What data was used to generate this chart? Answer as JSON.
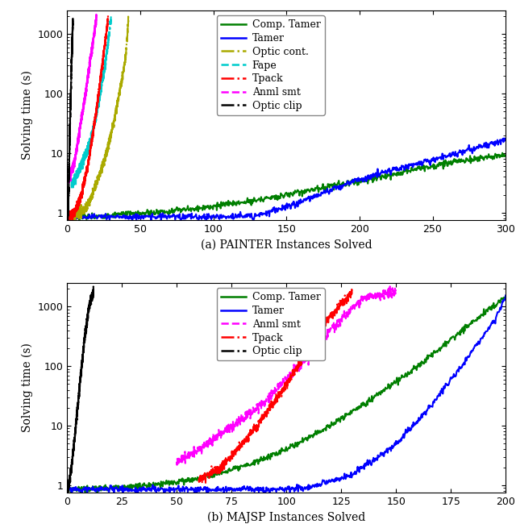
{
  "panel_a": {
    "xlabel": "(a) PAINTER Instances Solved",
    "ylabel": "Solving time (s)",
    "xlim": [
      0,
      300
    ],
    "ylim": [
      0.75,
      2500
    ],
    "xticks": [
      0,
      50,
      100,
      150,
      200,
      250,
      300
    ],
    "series": [
      {
        "label": "Comp. Tamer",
        "color": "#007f00",
        "ls": "solid",
        "lw": 1.5,
        "pts": [
          [
            1,
            0.85
          ],
          [
            30,
            0.9
          ],
          [
            60,
            1.0
          ],
          [
            90,
            1.2
          ],
          [
            120,
            1.5
          ],
          [
            150,
            2.0
          ],
          [
            180,
            2.8
          ],
          [
            210,
            3.8
          ],
          [
            240,
            5.5
          ],
          [
            270,
            7.5
          ],
          [
            300,
            9.5
          ]
        ]
      },
      {
        "label": "Tamer",
        "color": "#0000ff",
        "ls": "solid",
        "lw": 1.5,
        "pts": [
          [
            1,
            0.85
          ],
          [
            50,
            0.85
          ],
          [
            80,
            0.85
          ],
          [
            100,
            0.85
          ],
          [
            110,
            0.85
          ],
          [
            130,
            0.9
          ],
          [
            160,
            1.5
          ],
          [
            190,
            3.0
          ],
          [
            220,
            5.0
          ],
          [
            260,
            9.0
          ],
          [
            300,
            17.0
          ]
        ]
      },
      {
        "label": "Optic cont.",
        "color": "#aaaa00",
        "ls": "dashdot",
        "lw": 1.5,
        "pts": [
          [
            1,
            0.85
          ],
          [
            5,
            0.9
          ],
          [
            10,
            1.0
          ],
          [
            15,
            1.5
          ],
          [
            20,
            3.0
          ],
          [
            25,
            7.0
          ],
          [
            30,
            20.0
          ],
          [
            35,
            80.0
          ],
          [
            40,
            400.0
          ],
          [
            42,
            1800.0
          ]
        ]
      },
      {
        "label": "Fape",
        "color": "#00cccc",
        "ls": "dashed",
        "lw": 1.5,
        "pts": [
          [
            3,
            3.0
          ],
          [
            8,
            5.0
          ],
          [
            13,
            10.0
          ],
          [
            18,
            25.0
          ],
          [
            22,
            80.0
          ],
          [
            26,
            300.0
          ],
          [
            30,
            1800.0
          ]
        ]
      },
      {
        "label": "Tpack",
        "color": "#ff0000",
        "ls": "dashdot",
        "lw": 1.5,
        "pts": [
          [
            1,
            0.85
          ],
          [
            5,
            1.0
          ],
          [
            10,
            2.0
          ],
          [
            15,
            8.0
          ],
          [
            20,
            50.0
          ],
          [
            24,
            300.0
          ],
          [
            28,
            1800.0
          ]
        ]
      },
      {
        "label": "Anml smt",
        "color": "#ff00ff",
        "ls": "dashed",
        "lw": 1.5,
        "pts": [
          [
            1,
            3.5
          ],
          [
            5,
            7.0
          ],
          [
            8,
            20.0
          ],
          [
            12,
            80.0
          ],
          [
            16,
            400.0
          ],
          [
            20,
            1800.0
          ]
        ]
      },
      {
        "label": "Optic clip",
        "color": "#000000",
        "ls": "dashdot",
        "lw": 1.5,
        "pts": [
          [
            0.5,
            0.85
          ],
          [
            1,
            2.0
          ],
          [
            2,
            30.0
          ],
          [
            3,
            300.0
          ],
          [
            4,
            1800.0
          ]
        ]
      }
    ],
    "legend_texts": [
      "Comp. Tamer",
      "Tamer",
      "Optic cont.",
      "Fape",
      "Tpack",
      "Anml smt",
      "Optic clip"
    ]
  },
  "panel_b": {
    "xlabel": "(b) MAJSP Instances Solved",
    "ylabel": "Solving time (s)",
    "xlim": [
      0,
      200
    ],
    "ylim": [
      0.75,
      2500
    ],
    "xticks": [
      0,
      25,
      50,
      75,
      100,
      125,
      150,
      175,
      200
    ],
    "series": [
      {
        "label": "Comp. Tamer",
        "color": "#007f00",
        "ls": "solid",
        "lw": 1.5,
        "pts": [
          [
            1,
            0.85
          ],
          [
            20,
            0.9
          ],
          [
            40,
            1.0
          ],
          [
            60,
            1.3
          ],
          [
            80,
            2.0
          ],
          [
            100,
            4.0
          ],
          [
            120,
            10.0
          ],
          [
            140,
            30.0
          ],
          [
            160,
            100.0
          ],
          [
            180,
            400.0
          ],
          [
            200,
            1500.0
          ]
        ]
      },
      {
        "label": "Tamer",
        "color": "#0000ff",
        "ls": "solid",
        "lw": 1.5,
        "pts": [
          [
            1,
            0.85
          ],
          [
            40,
            0.85
          ],
          [
            70,
            0.85
          ],
          [
            90,
            0.85
          ],
          [
            100,
            0.85
          ],
          [
            110,
            0.9
          ],
          [
            130,
            1.5
          ],
          [
            150,
            5.0
          ],
          [
            165,
            20.0
          ],
          [
            180,
            100.0
          ],
          [
            195,
            600.0
          ],
          [
            200,
            1500.0
          ]
        ]
      },
      {
        "label": "Anml smt",
        "color": "#ff00ff",
        "ls": "dashed",
        "lw": 1.5,
        "pts": [
          [
            50,
            2.5
          ],
          [
            60,
            4.0
          ],
          [
            70,
            7.0
          ],
          [
            80,
            13.0
          ],
          [
            90,
            25.0
          ],
          [
            100,
            60.0
          ],
          [
            110,
            150.0
          ],
          [
            120,
            400.0
          ],
          [
            135,
            1400.0
          ],
          [
            150,
            1800.0
          ]
        ]
      },
      {
        "label": "Tpack",
        "color": "#ff0000",
        "ls": "dashdot",
        "lw": 1.5,
        "pts": [
          [
            60,
            1.2
          ],
          [
            70,
            2.0
          ],
          [
            80,
            5.0
          ],
          [
            90,
            15.0
          ],
          [
            100,
            50.0
          ],
          [
            110,
            200.0
          ],
          [
            120,
            700.0
          ],
          [
            130,
            1800.0
          ]
        ]
      },
      {
        "label": "Optic clip",
        "color": "#000000",
        "ls": "dashdot",
        "lw": 1.5,
        "pts": [
          [
            0.5,
            0.85
          ],
          [
            2,
            2.0
          ],
          [
            4,
            10.0
          ],
          [
            6,
            60.0
          ],
          [
            8,
            300.0
          ],
          [
            10,
            1000.0
          ],
          [
            12,
            1800.0
          ]
        ]
      }
    ],
    "legend_texts": [
      "Comp. Tamer",
      "Tamer",
      "Anml smt",
      "Tpack",
      "Optic clip"
    ]
  }
}
